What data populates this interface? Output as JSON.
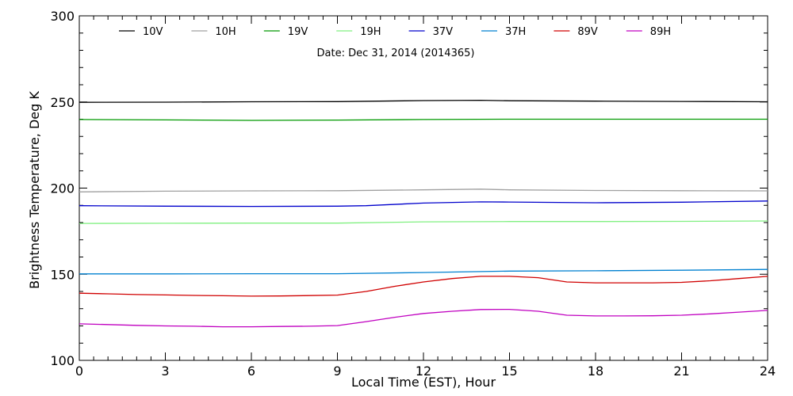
{
  "chart_data": {
    "type": "line",
    "title": "",
    "annotation": "Date: Dec 31, 2014 (2014365)",
    "xlabel": "Local Time (EST), Hour",
    "ylabel": "Brightness Temperature, Deg K",
    "xlim": [
      0,
      24
    ],
    "ylim": [
      100,
      300
    ],
    "xticks": [
      0,
      3,
      6,
      9,
      12,
      15,
      18,
      21,
      24
    ],
    "yticks": [
      100,
      150,
      200,
      250,
      300
    ],
    "grid": false,
    "legend_position": "top",
    "series": [
      {
        "name": "10V",
        "color": "#000000",
        "x": [
          0,
          3,
          6,
          9,
          12,
          14,
          15,
          18,
          21,
          24
        ],
        "y": [
          249.8,
          249.9,
          250.1,
          250.2,
          250.8,
          251.0,
          250.7,
          250.5,
          250.3,
          250.1
        ]
      },
      {
        "name": "10H",
        "color": "#a0a0a0",
        "x": [
          0,
          3,
          6,
          9,
          12,
          14,
          15,
          18,
          21,
          24
        ],
        "y": [
          197.8,
          198.2,
          198.4,
          198.5,
          199.0,
          199.4,
          199.0,
          198.6,
          198.5,
          198.4
        ]
      },
      {
        "name": "19V",
        "color": "#009900",
        "x": [
          0,
          3,
          6,
          9,
          12,
          15,
          18,
          21,
          24
        ],
        "y": [
          239.8,
          239.6,
          239.3,
          239.5,
          239.8,
          240.0,
          240.0,
          240.0,
          240.0
        ]
      },
      {
        "name": "19H",
        "color": "#80f080",
        "x": [
          0,
          3,
          6,
          9,
          12,
          15,
          18,
          21,
          24
        ],
        "y": [
          179.5,
          179.6,
          179.7,
          179.7,
          180.4,
          180.6,
          180.6,
          180.7,
          180.9
        ]
      },
      {
        "name": "37V",
        "color": "#0000cc",
        "x": [
          0,
          3,
          6,
          9,
          10,
          12,
          14,
          15,
          18,
          21,
          24
        ],
        "y": [
          189.8,
          189.5,
          189.4,
          189.5,
          189.8,
          191.3,
          192.0,
          191.9,
          191.5,
          191.8,
          192.5
        ]
      },
      {
        "name": "37H",
        "color": "#0080d0",
        "x": [
          0,
          3,
          6,
          9,
          12,
          15,
          18,
          21,
          24
        ],
        "y": [
          150.2,
          150.2,
          150.3,
          150.3,
          151.0,
          151.8,
          152.0,
          152.3,
          152.8
        ]
      },
      {
        "name": "89V",
        "color": "#d00000",
        "x": [
          0,
          1,
          2,
          3,
          4,
          5,
          6,
          7,
          8,
          9,
          10,
          11,
          12,
          13,
          14,
          15,
          16,
          17,
          18,
          19,
          20,
          21,
          22,
          23,
          24
        ],
        "y": [
          139.0,
          138.6,
          138.2,
          138.0,
          137.7,
          137.5,
          137.3,
          137.4,
          137.6,
          137.9,
          140.0,
          143.0,
          145.5,
          147.5,
          148.8,
          148.8,
          148.0,
          145.5,
          145.0,
          145.0,
          145.0,
          145.3,
          146.2,
          147.5,
          148.8
        ]
      },
      {
        "name": "89H",
        "color": "#c000c0",
        "x": [
          0,
          1,
          2,
          3,
          4,
          5,
          6,
          7,
          8,
          9,
          10,
          11,
          12,
          13,
          14,
          15,
          16,
          17,
          18,
          19,
          20,
          21,
          22,
          23,
          24
        ],
        "y": [
          121.2,
          120.8,
          120.3,
          120.0,
          119.8,
          119.5,
          119.5,
          119.7,
          119.8,
          120.2,
          122.5,
          125.0,
          127.2,
          128.5,
          129.5,
          129.6,
          128.5,
          126.2,
          125.8,
          125.8,
          125.9,
          126.2,
          127.0,
          128.0,
          129.0
        ]
      }
    ]
  }
}
